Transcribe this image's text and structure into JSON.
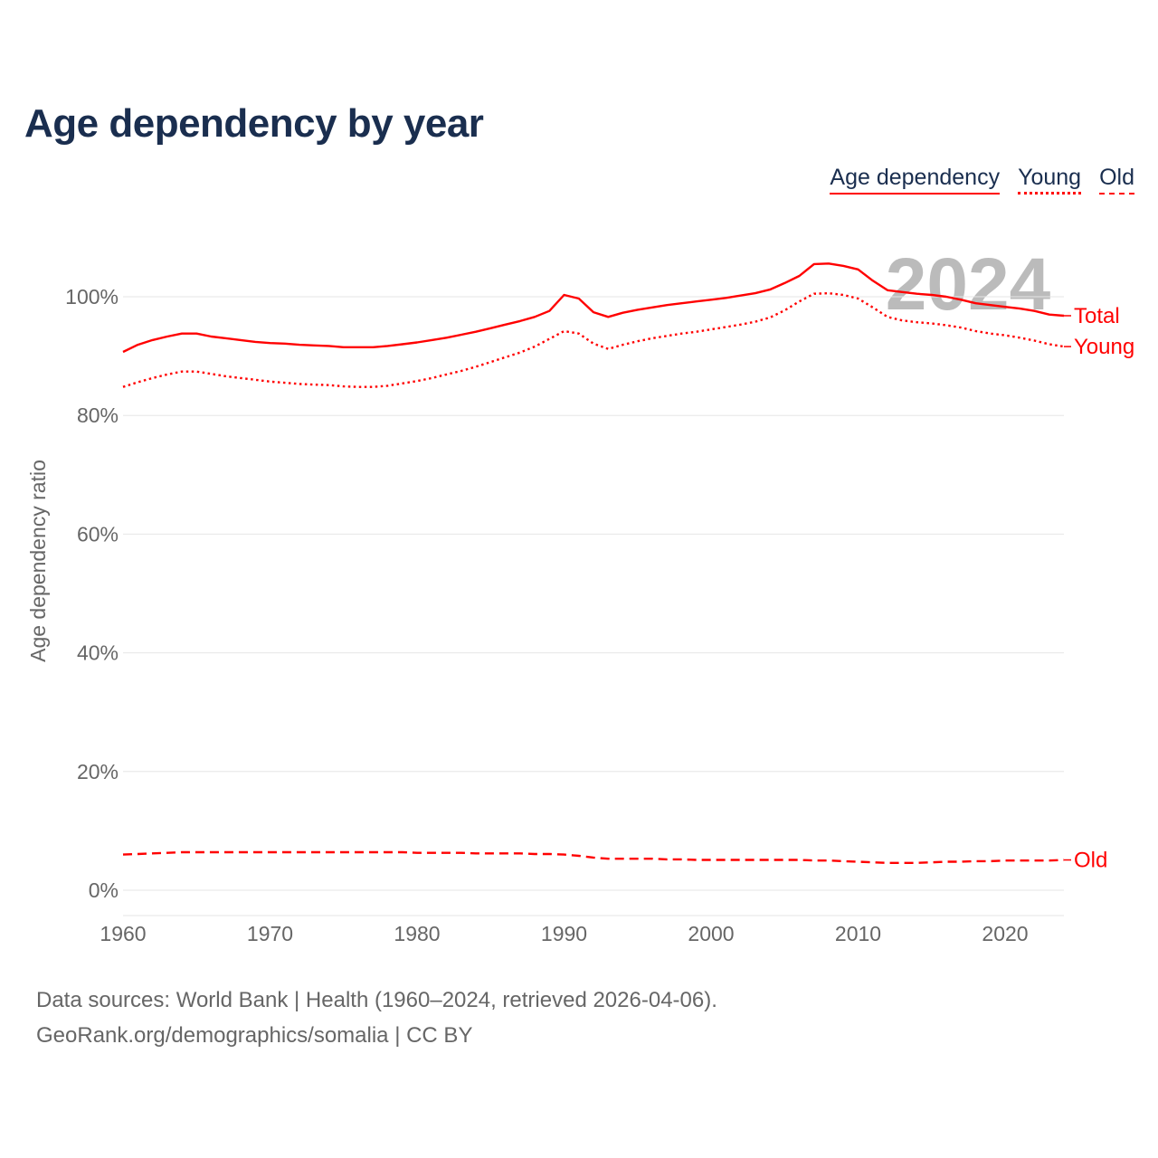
{
  "title": "Age dependency by year",
  "legend": [
    {
      "label": "Age dependency",
      "style": "solid"
    },
    {
      "label": "Young",
      "style": "dotted"
    },
    {
      "label": "Old",
      "style": "dashed"
    }
  ],
  "footer": {
    "line1": "Data sources: World Bank | Health (1960–2024, retrieved 2026-04-06).",
    "line2": "GeoRank.org/demographics/somalia | CC BY"
  },
  "chart_data": {
    "type": "line",
    "title": "Age dependency by year",
    "xlabel": "",
    "ylabel": "Age dependency ratio",
    "xlim": [
      1960,
      2024
    ],
    "ylim": [
      0,
      110
    ],
    "x_ticks": [
      1960,
      1970,
      1980,
      1990,
      2000,
      2010,
      2020
    ],
    "y_ticks": [
      0,
      20,
      40,
      60,
      80,
      100
    ],
    "y_tick_labels": [
      "0%",
      "20%",
      "40%",
      "60%",
      "80%",
      "100%"
    ],
    "grid": "horizontal",
    "watermark": "2024",
    "color": "#ff0000",
    "x_start": 1960,
    "series": [
      {
        "name": "Total",
        "style": "solid",
        "values": [
          90.7,
          91.9,
          92.7,
          93.3,
          93.8,
          93.8,
          93.3,
          93.0,
          92.7,
          92.4,
          92.2,
          92.1,
          91.9,
          91.8,
          91.7,
          91.5,
          91.5,
          91.5,
          91.7,
          92.0,
          92.3,
          92.7,
          93.1,
          93.6,
          94.1,
          94.7,
          95.3,
          95.9,
          96.6,
          97.6,
          100.3,
          99.7,
          97.4,
          96.6,
          97.3,
          97.8,
          98.2,
          98.6,
          98.9,
          99.2,
          99.5,
          99.8,
          100.2,
          100.6,
          101.2,
          102.3,
          103.5,
          105.5,
          105.6,
          105.2,
          104.6,
          102.7,
          101.1,
          100.8,
          100.5,
          100.3,
          100.0,
          99.5,
          98.9,
          98.6,
          98.3,
          98.0,
          97.6,
          97.0,
          96.8
        ]
      },
      {
        "name": "Young",
        "style": "dotted",
        "values": [
          84.8,
          85.6,
          86.3,
          86.9,
          87.4,
          87.4,
          87.0,
          86.6,
          86.3,
          86.0,
          85.7,
          85.5,
          85.3,
          85.2,
          85.1,
          84.9,
          84.8,
          84.8,
          85.0,
          85.4,
          85.8,
          86.3,
          86.9,
          87.5,
          88.2,
          89.0,
          89.8,
          90.6,
          91.6,
          92.9,
          94.2,
          93.8,
          92.1,
          91.2,
          91.9,
          92.5,
          93.0,
          93.4,
          93.8,
          94.1,
          94.5,
          94.9,
          95.3,
          95.8,
          96.5,
          97.7,
          99.2,
          100.5,
          100.6,
          100.3,
          99.7,
          98.2,
          96.6,
          96.0,
          95.7,
          95.5,
          95.2,
          94.8,
          94.2,
          93.8,
          93.5,
          93.1,
          92.6,
          92.0,
          91.6
        ]
      },
      {
        "name": "Old",
        "style": "dashed",
        "values": [
          6.0,
          6.1,
          6.2,
          6.3,
          6.4,
          6.4,
          6.4,
          6.4,
          6.4,
          6.4,
          6.4,
          6.4,
          6.4,
          6.4,
          6.4,
          6.4,
          6.4,
          6.4,
          6.4,
          6.4,
          6.3,
          6.3,
          6.3,
          6.3,
          6.2,
          6.2,
          6.2,
          6.2,
          6.1,
          6.1,
          6.0,
          5.8,
          5.5,
          5.3,
          5.3,
          5.3,
          5.3,
          5.2,
          5.2,
          5.1,
          5.1,
          5.1,
          5.1,
          5.1,
          5.1,
          5.1,
          5.1,
          5.0,
          5.0,
          4.9,
          4.8,
          4.7,
          4.6,
          4.6,
          4.6,
          4.7,
          4.8,
          4.8,
          4.9,
          4.9,
          5.0,
          5.0,
          5.0,
          5.0,
          5.1
        ]
      }
    ]
  }
}
